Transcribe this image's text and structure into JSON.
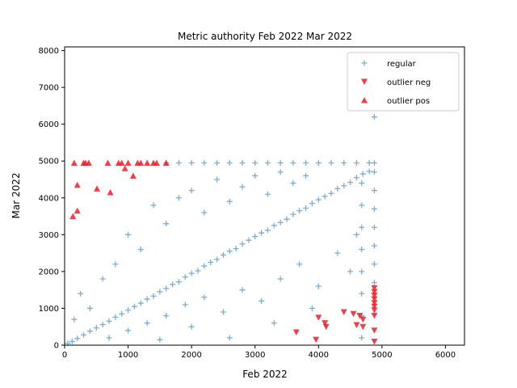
{
  "chart_data": {
    "type": "scatter",
    "title": "Metric authority Feb 2022 Mar 2022",
    "xlabel": "Feb 2022",
    "ylabel": "Mar 2022",
    "xlim": [
      0,
      6300
    ],
    "ylim": [
      0,
      8100
    ],
    "xticks": [
      0,
      1000,
      2000,
      3000,
      4000,
      5000,
      6000
    ],
    "yticks": [
      0,
      1000,
      2000,
      3000,
      4000,
      5000,
      6000,
      7000,
      8000
    ],
    "grid": false,
    "legend_position": "top-right",
    "colors": {
      "regular": "#1f77b4",
      "outlier": "#e8202a"
    },
    "series": [
      {
        "name": "regular",
        "marker": "plus",
        "description": "dense cloud along the diagonal y≈x from 0 to ~4800, a cap row at y≈4950 (x 1600–4800), vertical columns at x≈4680 and x≈4880, plus scattered points",
        "points": [
          [
            50,
            50
          ],
          [
            120,
            100
          ],
          [
            200,
            180
          ],
          [
            300,
            280
          ],
          [
            400,
            380
          ],
          [
            500,
            470
          ],
          [
            600,
            560
          ],
          [
            700,
            650
          ],
          [
            800,
            760
          ],
          [
            900,
            850
          ],
          [
            1000,
            950
          ],
          [
            1100,
            1050
          ],
          [
            1200,
            1140
          ],
          [
            1300,
            1250
          ],
          [
            1400,
            1330
          ],
          [
            1500,
            1450
          ],
          [
            1600,
            1540
          ],
          [
            1700,
            1650
          ],
          [
            1800,
            1720
          ],
          [
            1900,
            1850
          ],
          [
            2000,
            1950
          ],
          [
            2100,
            2020
          ],
          [
            2200,
            2150
          ],
          [
            2300,
            2250
          ],
          [
            2400,
            2330
          ],
          [
            2500,
            2450
          ],
          [
            2600,
            2550
          ],
          [
            2700,
            2620
          ],
          [
            2800,
            2750
          ],
          [
            2900,
            2850
          ],
          [
            3000,
            2950
          ],
          [
            3100,
            3050
          ],
          [
            3200,
            3120
          ],
          [
            3300,
            3250
          ],
          [
            3400,
            3330
          ],
          [
            3500,
            3420
          ],
          [
            3600,
            3550
          ],
          [
            3700,
            3650
          ],
          [
            3800,
            3720
          ],
          [
            3900,
            3850
          ],
          [
            4000,
            3950
          ],
          [
            4100,
            4040
          ],
          [
            4200,
            4120
          ],
          [
            4300,
            4250
          ],
          [
            4400,
            4330
          ],
          [
            4500,
            4420
          ],
          [
            4600,
            4550
          ],
          [
            4700,
            4650
          ],
          [
            4800,
            4720
          ],
          [
            150,
            700
          ],
          [
            250,
            1400
          ],
          [
            400,
            1000
          ],
          [
            600,
            1800
          ],
          [
            800,
            2200
          ],
          [
            1000,
            3000
          ],
          [
            1200,
            2600
          ],
          [
            1400,
            3800
          ],
          [
            1600,
            3300
          ],
          [
            1800,
            4000
          ],
          [
            2000,
            4200
          ],
          [
            2200,
            3600
          ],
          [
            2400,
            4500
          ],
          [
            2600,
            3900
          ],
          [
            2800,
            4300
          ],
          [
            3000,
            4600
          ],
          [
            3200,
            4100
          ],
          [
            3400,
            4700
          ],
          [
            3600,
            4400
          ],
          [
            3800,
            4600
          ],
          [
            700,
            200
          ],
          [
            1000,
            400
          ],
          [
            1300,
            600
          ],
          [
            1600,
            800
          ],
          [
            1900,
            1100
          ],
          [
            2200,
            1300
          ],
          [
            2500,
            900
          ],
          [
            2800,
            1500
          ],
          [
            3100,
            1200
          ],
          [
            3400,
            1800
          ],
          [
            3700,
            2200
          ],
          [
            4000,
            1600
          ],
          [
            4300,
            2500
          ],
          [
            4500,
            2000
          ],
          [
            4600,
            3000
          ],
          [
            2600,
            200
          ],
          [
            2000,
            500
          ],
          [
            1500,
            150
          ],
          [
            3300,
            600
          ],
          [
            3900,
            1000
          ],
          [
            1600,
            4950
          ],
          [
            1800,
            4950
          ],
          [
            2000,
            4950
          ],
          [
            2200,
            4950
          ],
          [
            2400,
            4950
          ],
          [
            2600,
            4950
          ],
          [
            2800,
            4950
          ],
          [
            3000,
            4950
          ],
          [
            3200,
            4950
          ],
          [
            3400,
            4950
          ],
          [
            3600,
            4950
          ],
          [
            3800,
            4950
          ],
          [
            4000,
            4950
          ],
          [
            4200,
            4950
          ],
          [
            4400,
            4950
          ],
          [
            4600,
            4950
          ],
          [
            4800,
            4950
          ],
          [
            4680,
            200
          ],
          [
            4680,
            800
          ],
          [
            4680,
            1400
          ],
          [
            4680,
            2000
          ],
          [
            4680,
            2600
          ],
          [
            4680,
            3200
          ],
          [
            4680,
            3800
          ],
          [
            4680,
            4400
          ],
          [
            4880,
            1700
          ],
          [
            4880,
            2200
          ],
          [
            4880,
            2700
          ],
          [
            4880,
            3200
          ],
          [
            4880,
            3700
          ],
          [
            4880,
            4200
          ],
          [
            4880,
            4700
          ],
          [
            4880,
            4950
          ],
          [
            4880,
            6200
          ]
        ]
      },
      {
        "name": "outlier neg",
        "marker": "triangle-down",
        "points": [
          [
            3650,
            350
          ],
          [
            3960,
            150
          ],
          [
            4000,
            750
          ],
          [
            4100,
            600
          ],
          [
            4120,
            500
          ],
          [
            4400,
            900
          ],
          [
            4550,
            850
          ],
          [
            4600,
            550
          ],
          [
            4650,
            800
          ],
          [
            4700,
            500
          ],
          [
            4700,
            700
          ],
          [
            4880,
            1550
          ],
          [
            4880,
            1450
          ],
          [
            4880,
            1350
          ],
          [
            4880,
            1250
          ],
          [
            4880,
            1150
          ],
          [
            4880,
            1050
          ],
          [
            4880,
            950
          ],
          [
            4880,
            800
          ],
          [
            4880,
            400
          ],
          [
            4880,
            100
          ]
        ]
      },
      {
        "name": "outlier pos",
        "marker": "triangle-up",
        "points": [
          [
            150,
            4950
          ],
          [
            300,
            4950
          ],
          [
            330,
            4950
          ],
          [
            380,
            4950
          ],
          [
            680,
            4950
          ],
          [
            850,
            4950
          ],
          [
            900,
            4950
          ],
          [
            1000,
            4950
          ],
          [
            1150,
            4950
          ],
          [
            1200,
            4950
          ],
          [
            1300,
            4950
          ],
          [
            1400,
            4950
          ],
          [
            1450,
            4950
          ],
          [
            1600,
            4950
          ],
          [
            200,
            4350
          ],
          [
            510,
            4250
          ],
          [
            720,
            4150
          ],
          [
            950,
            4800
          ],
          [
            1080,
            4600
          ],
          [
            130,
            3500
          ],
          [
            200,
            3650
          ]
        ]
      }
    ]
  }
}
